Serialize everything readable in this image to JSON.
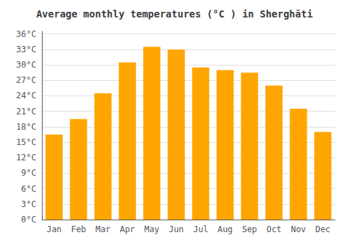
{
  "chart_data": {
    "type": "bar",
    "title": "Average monthly temperatures (°C ) in Sherghāti",
    "categories": [
      "Jan",
      "Feb",
      "Mar",
      "Apr",
      "May",
      "Jun",
      "Jul",
      "Aug",
      "Sep",
      "Oct",
      "Nov",
      "Dec"
    ],
    "values": [
      16.5,
      19.5,
      24.5,
      30.5,
      33.5,
      33.0,
      29.5,
      29.0,
      28.5,
      26.0,
      21.5,
      17.0
    ],
    "color": "#FFA500",
    "ylim": [
      0,
      36.5
    ],
    "yticks": [
      {
        "value": 0,
        "label": "0°C"
      },
      {
        "value": 3,
        "label": "3°C"
      },
      {
        "value": 6,
        "label": "6°C"
      },
      {
        "value": 9,
        "label": "9°C"
      },
      {
        "value": 12,
        "label": "12°C"
      },
      {
        "value": 15,
        "label": "15°C"
      },
      {
        "value": 18,
        "label": "18°C"
      },
      {
        "value": 21,
        "label": "21°C"
      },
      {
        "value": 24,
        "label": "24°C"
      },
      {
        "value": 27,
        "label": "27°C"
      },
      {
        "value": 30,
        "label": "30°C"
      },
      {
        "value": 33,
        "label": "33°C"
      },
      {
        "value": 36,
        "label": "36°C"
      }
    ],
    "grid": true
  }
}
